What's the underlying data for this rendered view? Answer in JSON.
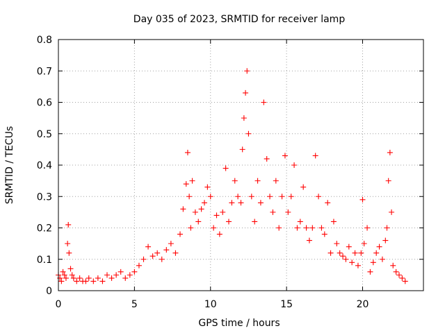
{
  "chart_data": {
    "type": "scatter",
    "title": "Day 035 of 2023, SRMTID for receiver lamp",
    "xlabel": "GPS time / hours",
    "ylabel": "SRMTID / TECUs",
    "xlim": [
      0,
      24
    ],
    "ylim": [
      0,
      0.8
    ],
    "xticks": [
      0,
      5,
      10,
      15,
      20
    ],
    "xtick_labels": [
      "0",
      "5",
      "10",
      "15",
      "20"
    ],
    "yticks": [
      0,
      0.1,
      0.2,
      0.3,
      0.4,
      0.5,
      0.6,
      0.7,
      0.8
    ],
    "ytick_labels": [
      "0",
      "0.1",
      "0.2",
      "0.3",
      "0.4",
      "0.5",
      "0.6",
      "0.7",
      "0.8"
    ],
    "grid": true,
    "marker": "+",
    "color": "#ff0000",
    "series": [
      {
        "name": "SRMTID",
        "x": [
          0.0,
          0.1,
          0.2,
          0.3,
          0.4,
          0.5,
          0.6,
          0.65,
          0.7,
          0.8,
          0.9,
          1.0,
          1.2,
          1.4,
          1.6,
          1.8,
          2.0,
          2.3,
          2.6,
          2.9,
          3.2,
          3.5,
          3.8,
          4.1,
          4.4,
          4.7,
          5.0,
          5.3,
          5.6,
          5.9,
          6.2,
          6.5,
          6.8,
          7.1,
          7.4,
          7.7,
          8.0,
          8.2,
          8.4,
          8.5,
          8.6,
          8.7,
          8.8,
          9.0,
          9.2,
          9.4,
          9.6,
          9.8,
          10.0,
          10.2,
          10.4,
          10.6,
          10.8,
          11.0,
          11.2,
          11.4,
          11.6,
          11.8,
          12.0,
          12.1,
          12.2,
          12.3,
          12.4,
          12.5,
          12.7,
          12.9,
          13.1,
          13.3,
          13.5,
          13.7,
          13.9,
          14.1,
          14.3,
          14.5,
          14.7,
          14.9,
          15.1,
          15.3,
          15.5,
          15.7,
          15.9,
          16.1,
          16.3,
          16.5,
          16.7,
          16.9,
          17.1,
          17.3,
          17.5,
          17.7,
          17.9,
          18.1,
          18.3,
          18.5,
          18.7,
          18.9,
          19.1,
          19.3,
          19.5,
          19.7,
          19.9,
          20.0,
          20.1,
          20.3,
          20.5,
          20.7,
          20.9,
          21.1,
          21.3,
          21.5,
          21.6,
          21.7,
          21.8,
          21.9,
          22.0,
          22.2,
          22.4,
          22.6,
          22.8
        ],
        "y": [
          0.05,
          0.04,
          0.03,
          0.06,
          0.05,
          0.04,
          0.15,
          0.21,
          0.12,
          0.07,
          0.05,
          0.04,
          0.03,
          0.04,
          0.03,
          0.03,
          0.04,
          0.03,
          0.04,
          0.03,
          0.05,
          0.04,
          0.05,
          0.06,
          0.04,
          0.05,
          0.06,
          0.08,
          0.1,
          0.14,
          0.11,
          0.12,
          0.1,
          0.13,
          0.15,
          0.12,
          0.18,
          0.26,
          0.34,
          0.44,
          0.3,
          0.2,
          0.35,
          0.25,
          0.22,
          0.26,
          0.28,
          0.33,
          0.3,
          0.2,
          0.24,
          0.18,
          0.25,
          0.39,
          0.22,
          0.28,
          0.35,
          0.3,
          0.28,
          0.45,
          0.55,
          0.63,
          0.7,
          0.5,
          0.3,
          0.22,
          0.35,
          0.28,
          0.6,
          0.42,
          0.3,
          0.25,
          0.35,
          0.2,
          0.3,
          0.43,
          0.25,
          0.3,
          0.4,
          0.2,
          0.22,
          0.33,
          0.2,
          0.16,
          0.2,
          0.43,
          0.3,
          0.2,
          0.18,
          0.28,
          0.12,
          0.22,
          0.15,
          0.12,
          0.11,
          0.1,
          0.14,
          0.09,
          0.12,
          0.08,
          0.12,
          0.29,
          0.15,
          0.2,
          0.06,
          0.09,
          0.12,
          0.14,
          0.1,
          0.16,
          0.2,
          0.35,
          0.44,
          0.25,
          0.08,
          0.06,
          0.05,
          0.04,
          0.03
        ]
      }
    ]
  }
}
